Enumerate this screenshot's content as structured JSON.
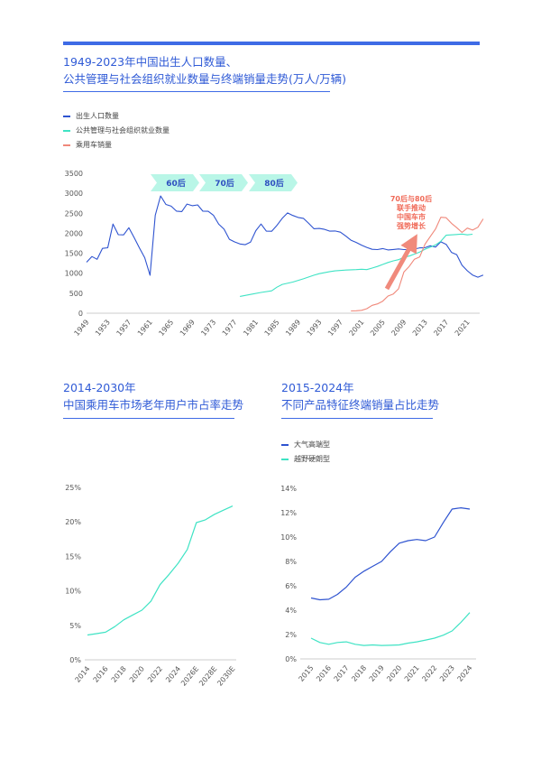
{
  "section1": {
    "title_line1": "1949-2023年中国出生人口数量、",
    "title_line2": "公共管理与社会组织就业数量与终端销量走势(万人/万辆)"
  },
  "section2": {
    "title_line1": "2014-2030年",
    "title_line2": "中国乘用车市场老年用户市占率走势"
  },
  "section3": {
    "title_line1": "2015-2024年",
    "title_line2": "不同产品特征终端销量占比走势"
  },
  "colors": {
    "blue": "#2e53d0",
    "teal": "#3fe3c4",
    "salmon": "#f0887a",
    "arrow": "#f08a7c",
    "accent": "#3e6be6"
  },
  "chart_data": [
    {
      "type": "line",
      "ylim": [
        0,
        3500
      ],
      "yticks": [
        "0",
        "500",
        "1000",
        "1500",
        "2000",
        "2500",
        "3000",
        "3500"
      ],
      "xticks": [
        "1949",
        "1953",
        "1957",
        "1961",
        "1965",
        "1969",
        "1973",
        "1977",
        "1981",
        "1985",
        "1989",
        "1993",
        "1997",
        "2001",
        "2005",
        "2009",
        "2013",
        "2017",
        "2021"
      ],
      "xlim": [
        1949,
        2023
      ],
      "legend": [
        {
          "name": "出生人口数量",
          "color": "#2e53d0"
        },
        {
          "name": "公共管理与社会组织就业数量",
          "color": "#3fe3c4"
        },
        {
          "name": "乘用车销量",
          "color": "#f0887a"
        }
      ],
      "generation_tags": [
        "60后",
        "70后",
        "80后"
      ],
      "annotation": [
        "70后与80后",
        "联手推动",
        "中国车市",
        "强势增长"
      ],
      "series": [
        {
          "name": "出生人口数量",
          "color": "#2e53d0",
          "points": [
            [
              1949,
              1275
            ],
            [
              1950,
              1419
            ],
            [
              1951,
              1349
            ],
            [
              1952,
              1622
            ],
            [
              1953,
              1637
            ],
            [
              1954,
              2232
            ],
            [
              1955,
              1965
            ],
            [
              1956,
              1961
            ],
            [
              1957,
              2138
            ],
            [
              1958,
              1889
            ],
            [
              1959,
              1635
            ],
            [
              1960,
              1389
            ],
            [
              1961,
              949
            ],
            [
              1962,
              2451
            ],
            [
              1963,
              2934
            ],
            [
              1964,
              2721
            ],
            [
              1965,
              2679
            ],
            [
              1966,
              2554
            ],
            [
              1967,
              2543
            ],
            [
              1968,
              2731
            ],
            [
              1969,
              2690
            ],
            [
              1970,
              2710
            ],
            [
              1971,
              2551
            ],
            [
              1972,
              2550
            ],
            [
              1973,
              2447
            ],
            [
              1974,
              2226
            ],
            [
              1975,
              2102
            ],
            [
              1976,
              1849
            ],
            [
              1977,
              1783
            ],
            [
              1978,
              1733
            ],
            [
              1979,
              1715
            ],
            [
              1980,
              1776
            ],
            [
              1981,
              2064
            ],
            [
              1982,
              2230
            ],
            [
              1983,
              2052
            ],
            [
              1984,
              2050
            ],
            [
              1985,
              2196
            ],
            [
              1986,
              2374
            ],
            [
              1987,
              2508
            ],
            [
              1988,
              2445
            ],
            [
              1989,
              2396
            ],
            [
              1990,
              2374
            ],
            [
              1991,
              2250
            ],
            [
              1992,
              2113
            ],
            [
              1993,
              2120
            ],
            [
              1994,
              2098
            ],
            [
              1995,
              2052
            ],
            [
              1996,
              2057
            ],
            [
              1997,
              2028
            ],
            [
              1998,
              1934
            ],
            [
              1999,
              1827
            ],
            [
              2000,
              1771
            ],
            [
              2001,
              1702
            ],
            [
              2002,
              1647
            ],
            [
              2003,
              1599
            ],
            [
              2004,
              1593
            ],
            [
              2005,
              1617
            ],
            [
              2006,
              1584
            ],
            [
              2007,
              1594
            ],
            [
              2008,
              1608
            ],
            [
              2009,
              1591
            ],
            [
              2010,
              1592
            ],
            [
              2011,
              1604
            ],
            [
              2012,
              1635
            ],
            [
              2013,
              1640
            ],
            [
              2014,
              1687
            ],
            [
              2015,
              1655
            ],
            [
              2016,
              1786
            ],
            [
              2017,
              1723
            ],
            [
              2018,
              1523
            ],
            [
              2019,
              1465
            ],
            [
              2020,
              1200
            ],
            [
              2021,
              1062
            ],
            [
              2022,
              956
            ],
            [
              2023,
              902
            ],
            [
              2024,
              954
            ]
          ]
        },
        {
          "name": "公共管理与社会组织就业数量",
          "color": "#3fe3c4",
          "points": [
            [
              1978,
              420
            ],
            [
              1980,
              470
            ],
            [
              1982,
              520
            ],
            [
              1984,
              560
            ],
            [
              1985,
              650
            ],
            [
              1986,
              720
            ],
            [
              1988,
              780
            ],
            [
              1990,
              860
            ],
            [
              1992,
              950
            ],
            [
              1993,
              990
            ],
            [
              1995,
              1040
            ],
            [
              1996,
              1060
            ],
            [
              1998,
              1080
            ],
            [
              2000,
              1090
            ],
            [
              2001,
              1100
            ],
            [
              2002,
              1090
            ],
            [
              2003,
              1130
            ],
            [
              2004,
              1170
            ],
            [
              2005,
              1220
            ],
            [
              2006,
              1270
            ],
            [
              2007,
              1310
            ],
            [
              2008,
              1340
            ],
            [
              2009,
              1400
            ],
            [
              2010,
              1430
            ],
            [
              2011,
              1480
            ],
            [
              2012,
              1530
            ],
            [
              2013,
              1600
            ],
            [
              2014,
              1650
            ],
            [
              2015,
              1710
            ],
            [
              2016,
              1800
            ],
            [
              2017,
              1950
            ],
            [
              2018,
              1960
            ],
            [
              2019,
              1970
            ],
            [
              2020,
              1980
            ],
            [
              2021,
              1960
            ],
            [
              2022,
              1975
            ]
          ]
        },
        {
          "name": "乘用车销量",
          "color": "#f0887a",
          "points": [
            [
              1999,
              57
            ],
            [
              2000,
              61
            ],
            [
              2001,
              72
            ],
            [
              2002,
              113
            ],
            [
              2003,
              197
            ],
            [
              2004,
              232
            ],
            [
              2005,
              300
            ],
            [
              2006,
              430
            ],
            [
              2007,
              480
            ],
            [
              2008,
              610
            ],
            [
              2009,
              1030
            ],
            [
              2010,
              1170
            ],
            [
              2011,
              1350
            ],
            [
              2012,
              1410
            ],
            [
              2013,
              1730
            ],
            [
              2014,
              1920
            ],
            [
              2015,
              2110
            ],
            [
              2016,
              2400
            ],
            [
              2017,
              2390
            ],
            [
              2018,
              2250
            ],
            [
              2019,
              2140
            ],
            [
              2020,
              2020
            ],
            [
              2021,
              2130
            ],
            [
              2022,
              2080
            ],
            [
              2023,
              2150
            ],
            [
              2024,
              2360
            ]
          ]
        }
      ]
    },
    {
      "type": "line",
      "ylim": [
        0,
        25
      ],
      "yticks": [
        "0%",
        "5%",
        "10%",
        "15%",
        "20%",
        "25%"
      ],
      "categories": [
        "2014",
        "2015",
        "2016",
        "2017",
        "2018",
        "2019",
        "2020",
        "2021",
        "2022",
        "2023",
        "2024",
        "2025E",
        "2026E",
        "2027E",
        "2028E",
        "2029E",
        "2030E"
      ],
      "xticks": [
        "2014",
        "2016",
        "2018",
        "2020",
        "2022",
        "2024",
        "2026E",
        "2028E",
        "2030E"
      ],
      "series": [
        {
          "name": "",
          "color": "#3fe3c4",
          "values": [
            3.6,
            3.8,
            4.0,
            4.8,
            5.8,
            6.5,
            7.2,
            8.5,
            10.9,
            12.4,
            14.0,
            16.0,
            19.9,
            20.3,
            21.1,
            21.7,
            22.3
          ]
        }
      ]
    },
    {
      "type": "line",
      "ylim": [
        0,
        14
      ],
      "yticks": [
        "0%",
        "2%",
        "4%",
        "6%",
        "8%",
        "10%",
        "12%",
        "14%"
      ],
      "categories": [
        "2015",
        "2016",
        "2017",
        "2018",
        "2019",
        "2020",
        "2021",
        "2022",
        "2023",
        "2024"
      ],
      "legend": [
        {
          "name": "大气高端型",
          "color": "#2e53d0"
        },
        {
          "name": "越野硬朗型",
          "color": "#3fe3c4"
        }
      ],
      "series": [
        {
          "name": "大气高端型",
          "color": "#2e53d0",
          "points": [
            [
              2015,
              5.0
            ],
            [
              2015.5,
              4.85
            ],
            [
              2016,
              4.9
            ],
            [
              2016.5,
              5.3
            ],
            [
              2017,
              5.9
            ],
            [
              2017.5,
              6.7
            ],
            [
              2018,
              7.2
            ],
            [
              2018.5,
              7.6
            ],
            [
              2019,
              8.0
            ],
            [
              2019.5,
              8.8
            ],
            [
              2020,
              9.5
            ],
            [
              2020.5,
              9.7
            ],
            [
              2021,
              9.8
            ],
            [
              2021.5,
              9.7
            ],
            [
              2022,
              10.0
            ],
            [
              2022.5,
              11.2
            ],
            [
              2023,
              12.3
            ],
            [
              2023.5,
              12.4
            ],
            [
              2024,
              12.3
            ]
          ]
        },
        {
          "name": "越野硬朗型",
          "color": "#3fe3c4",
          "points": [
            [
              2015,
              1.7
            ],
            [
              2015.5,
              1.35
            ],
            [
              2016,
              1.2
            ],
            [
              2016.5,
              1.35
            ],
            [
              2017,
              1.4
            ],
            [
              2017.5,
              1.2
            ],
            [
              2018,
              1.1
            ],
            [
              2018.5,
              1.15
            ],
            [
              2019,
              1.1
            ],
            [
              2019.5,
              1.12
            ],
            [
              2020,
              1.15
            ],
            [
              2020.5,
              1.3
            ],
            [
              2021,
              1.4
            ],
            [
              2021.5,
              1.55
            ],
            [
              2022,
              1.7
            ],
            [
              2022.5,
              1.95
            ],
            [
              2023,
              2.3
            ],
            [
              2023.5,
              3.0
            ],
            [
              2024,
              3.8
            ]
          ]
        }
      ]
    }
  ]
}
